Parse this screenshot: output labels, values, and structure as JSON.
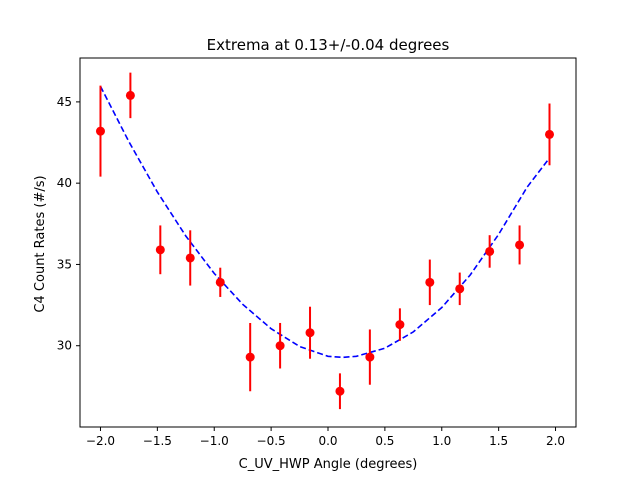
{
  "chart_data": {
    "type": "scatter",
    "title": "Extrema at 0.13+/-0.04 degrees",
    "xlabel": "C_UV_HWP Angle (degrees)",
    "ylabel": "C4 Count Rates (#/s)",
    "xlim": [
      -2.18,
      2.18
    ],
    "ylim": [
      25.0,
      47.7
    ],
    "xticks": [
      -2.0,
      -1.5,
      -1.0,
      -0.5,
      0.0,
      0.5,
      1.0,
      1.5,
      2.0
    ],
    "xtick_labels": [
      "−2.0",
      "−1.5",
      "−1.0",
      "−0.5",
      "0.0",
      "0.5",
      "1.0",
      "1.5",
      "2.0"
    ],
    "yticks": [
      30,
      35,
      40,
      45
    ],
    "ytick_labels": [
      "30",
      "35",
      "40",
      "45"
    ],
    "grid": false,
    "colors": {
      "points": "#ff0000",
      "fit": "#0000ff"
    },
    "series": [
      {
        "kind": "errorbar",
        "x": [
          -2.0,
          -1.737,
          -1.474,
          -1.211,
          -0.947,
          -0.684,
          -0.421,
          -0.158,
          0.105,
          0.368,
          0.632,
          0.895,
          1.158,
          1.421,
          1.684,
          1.947
        ],
        "y": [
          43.2,
          45.4,
          35.9,
          35.4,
          33.9,
          29.3,
          30.0,
          30.8,
          27.2,
          29.3,
          31.3,
          33.9,
          33.5,
          35.8,
          36.2,
          43.0
        ],
        "yerr": [
          2.8,
          1.4,
          1.5,
          1.7,
          0.9,
          2.1,
          1.4,
          1.6,
          1.1,
          1.7,
          1.0,
          1.4,
          1.0,
          1.0,
          1.2,
          1.9
        ]
      },
      {
        "kind": "fit",
        "style": "dashed",
        "x": [
          -2.0,
          -1.75,
          -1.5,
          -1.25,
          -1.0,
          -0.75,
          -0.5,
          -0.25,
          0.0,
          0.13,
          0.25,
          0.5,
          0.75,
          1.0,
          1.25,
          1.5,
          1.75,
          1.947
        ],
        "y": [
          45.95,
          42.55,
          39.45,
          36.75,
          34.45,
          32.55,
          31.05,
          29.95,
          29.35,
          29.28,
          29.35,
          29.85,
          30.85,
          32.35,
          34.35,
          36.85,
          39.75,
          41.55
        ]
      }
    ]
  }
}
